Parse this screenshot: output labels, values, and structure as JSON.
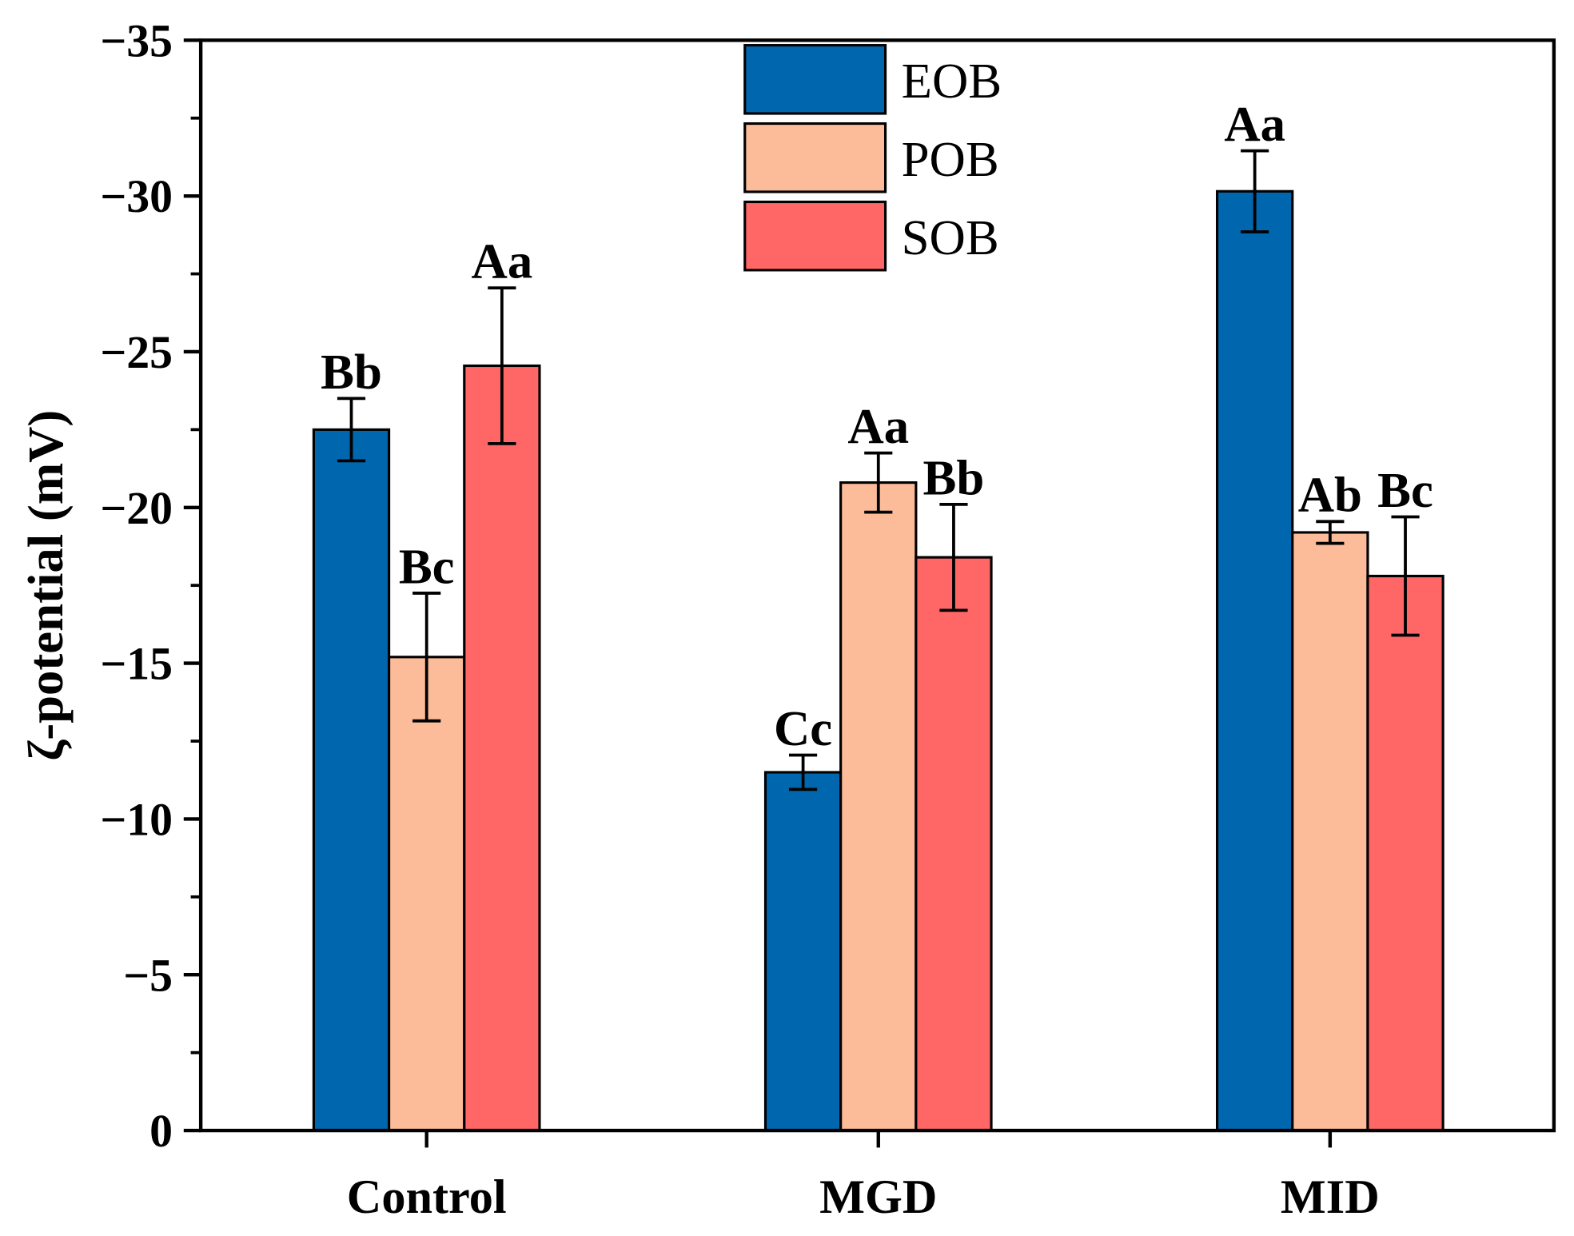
{
  "chart_data": {
    "type": "bar",
    "title": "",
    "xlabel": "",
    "ylabel": "ζ-potential (mV)",
    "ylim": [
      0,
      -35
    ],
    "yticks": [
      0,
      -5,
      -10,
      -15,
      -20,
      -25,
      -30,
      -35
    ],
    "ytick_labels": [
      "0",
      "−5",
      "−10",
      "−15",
      "−20",
      "−25",
      "−30",
      "−35"
    ],
    "categories": [
      "Control",
      "MGD",
      "MID"
    ],
    "legend_position": "top-center",
    "grid": false,
    "series": [
      {
        "name": "EOB",
        "color": "#0066AE",
        "values": [
          -22.5,
          -11.5,
          -30.15
        ],
        "errors": [
          1.0,
          0.55,
          1.3
        ],
        "labels": [
          "Bb",
          "Cc",
          "Aa"
        ]
      },
      {
        "name": "POB",
        "color": "#FCBC99",
        "values": [
          -15.2,
          -20.8,
          -19.2
        ],
        "errors": [
          2.05,
          0.95,
          0.35
        ],
        "labels": [
          "Bc",
          "Aa",
          "Ab"
        ]
      },
      {
        "name": "SOB",
        "color": "#FF6666",
        "values": [
          -24.55,
          -18.4,
          -17.8
        ],
        "errors": [
          2.5,
          1.7,
          1.9
        ],
        "labels": [
          "Aa",
          "Bb",
          "Bc"
        ]
      }
    ]
  }
}
